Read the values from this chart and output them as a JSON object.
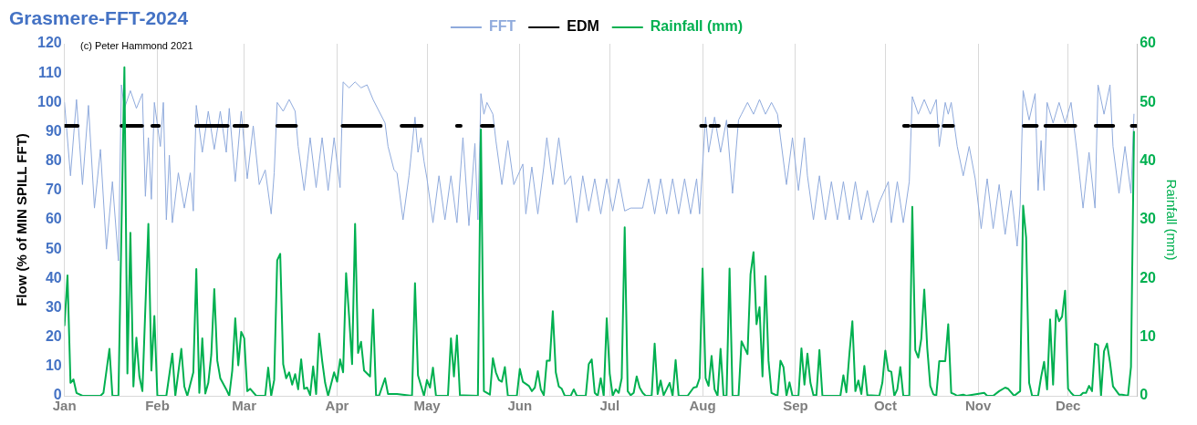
{
  "chart_data": {
    "type": "line",
    "title": "Grasmere-FFT-2024",
    "annotations": [
      "(c) Peter Hammond 2021"
    ],
    "ylabel": "Flow (% of MIN SPILL FFT)",
    "y2label": "Rainfall (mm)",
    "xlim": [
      "2024-01-01",
      "2024-12-24"
    ],
    "xticks": [
      {
        "value": "2024-01-01",
        "label": "Jan"
      },
      {
        "value": "2024-02-01",
        "label": "Feb"
      },
      {
        "value": "2024-03-01",
        "label": "Mar"
      },
      {
        "value": "2024-04-01",
        "label": "Apr"
      },
      {
        "value": "2024-05-01",
        "label": "May"
      },
      {
        "value": "2024-06-01",
        "label": "Jun"
      },
      {
        "value": "2024-07-01",
        "label": "Jul"
      },
      {
        "value": "2024-08-01",
        "label": "Aug"
      },
      {
        "value": "2024-09-01",
        "label": "Sep"
      },
      {
        "value": "2024-10-01",
        "label": "Oct"
      },
      {
        "value": "2024-11-01",
        "label": "Nov"
      },
      {
        "value": "2024-12-01",
        "label": "Dec"
      }
    ],
    "ylim": [
      0,
      120
    ],
    "yticks": [
      0,
      10,
      20,
      30,
      40,
      50,
      60,
      70,
      80,
      90,
      100,
      110,
      120
    ],
    "y2lim": [
      0,
      60
    ],
    "y2ticks": [
      0,
      10,
      20,
      30,
      40,
      50,
      60
    ],
    "grid": "x",
    "legend": "top",
    "marker": "none",
    "series": [
      {
        "name": "FFT",
        "color": "#8faadc",
        "x": [
          "2024-01-01",
          "2024-01-03",
          "2024-01-05",
          "2024-01-07",
          "2024-01-09",
          "2024-01-11",
          "2024-01-13",
          "2024-01-15",
          "2024-01-17",
          "2024-01-19",
          "2024-01-20",
          "2024-01-21",
          "2024-01-23",
          "2024-01-25",
          "2024-01-27",
          "2024-01-28",
          "2024-01-29",
          "2024-01-30",
          "2024-01-31",
          "2024-02-02",
          "2024-02-03",
          "2024-02-04",
          "2024-02-05",
          "2024-02-06",
          "2024-02-08",
          "2024-02-10",
          "2024-02-12",
          "2024-02-13",
          "2024-02-14",
          "2024-02-16",
          "2024-02-18",
          "2024-02-20",
          "2024-02-22",
          "2024-02-24",
          "2024-02-25",
          "2024-02-27",
          "2024-02-29",
          "2024-03-02",
          "2024-03-04",
          "2024-03-06",
          "2024-03-08",
          "2024-03-10",
          "2024-03-11",
          "2024-03-12",
          "2024-03-14",
          "2024-03-16",
          "2024-03-18",
          "2024-03-19",
          "2024-03-21",
          "2024-03-23",
          "2024-03-25",
          "2024-03-27",
          "2024-03-29",
          "2024-03-31",
          "2024-04-02",
          "2024-04-03",
          "2024-04-05",
          "2024-04-07",
          "2024-04-09",
          "2024-04-11",
          "2024-04-13",
          "2024-04-15",
          "2024-04-17",
          "2024-04-18",
          "2024-04-20",
          "2024-04-21",
          "2024-04-23",
          "2024-04-25",
          "2024-04-27",
          "2024-04-28",
          "2024-04-29",
          "2024-04-30",
          "2024-05-01",
          "2024-05-03",
          "2024-05-05",
          "2024-05-07",
          "2024-05-09",
          "2024-05-11",
          "2024-05-13",
          "2024-05-15",
          "2024-05-17",
          "2024-05-18",
          "2024-05-19",
          "2024-05-20",
          "2024-05-21",
          "2024-05-23",
          "2024-05-24",
          "2024-05-26",
          "2024-05-28",
          "2024-05-30",
          "2024-06-02",
          "2024-06-03",
          "2024-06-05",
          "2024-06-07",
          "2024-06-09",
          "2024-06-10",
          "2024-06-12",
          "2024-06-14",
          "2024-06-16",
          "2024-06-18",
          "2024-06-20",
          "2024-06-22",
          "2024-06-24",
          "2024-06-26",
          "2024-06-28",
          "2024-06-30",
          "2024-07-02",
          "2024-07-04",
          "2024-07-06",
          "2024-07-08",
          "2024-07-12",
          "2024-07-14",
          "2024-07-16",
          "2024-07-18",
          "2024-07-20",
          "2024-07-22",
          "2024-07-24",
          "2024-07-26",
          "2024-07-28",
          "2024-07-30",
          "2024-07-31",
          "2024-08-02",
          "2024-08-03",
          "2024-08-05",
          "2024-08-07",
          "2024-08-09",
          "2024-08-11",
          "2024-08-13",
          "2024-08-14",
          "2024-08-16",
          "2024-08-18",
          "2024-08-20",
          "2024-08-22",
          "2024-08-24",
          "2024-08-26",
          "2024-08-27",
          "2024-08-29",
          "2024-08-31",
          "2024-09-02",
          "2024-09-04",
          "2024-09-05",
          "2024-09-07",
          "2024-09-09",
          "2024-09-11",
          "2024-09-13",
          "2024-09-15",
          "2024-09-17",
          "2024-09-19",
          "2024-09-21",
          "2024-09-23",
          "2024-09-25",
          "2024-09-27",
          "2024-09-29",
          "2024-10-02",
          "2024-10-03",
          "2024-10-05",
          "2024-10-07",
          "2024-10-09",
          "2024-10-10",
          "2024-10-12",
          "2024-10-14",
          "2024-10-16",
          "2024-10-18",
          "2024-10-19",
          "2024-10-21",
          "2024-10-22",
          "2024-10-23",
          "2024-10-25",
          "2024-10-27",
          "2024-10-29",
          "2024-10-31",
          "2024-11-02",
          "2024-11-04",
          "2024-11-06",
          "2024-11-08",
          "2024-11-10",
          "2024-11-12",
          "2024-11-14",
          "2024-11-15",
          "2024-11-16",
          "2024-11-18",
          "2024-11-20",
          "2024-11-21",
          "2024-11-22",
          "2024-11-23",
          "2024-11-24",
          "2024-11-26",
          "2024-11-28",
          "2024-11-30",
          "2024-12-02",
          "2024-12-04",
          "2024-12-06",
          "2024-12-08",
          "2024-12-10",
          "2024-12-11",
          "2024-12-13",
          "2024-12-15",
          "2024-12-16",
          "2024-12-18",
          "2024-12-20",
          "2024-12-22",
          "2024-12-23"
        ],
        "values": [
          100,
          75,
          101,
          72,
          99,
          64,
          84,
          50,
          73,
          46,
          106,
          98,
          104,
          98,
          103,
          68,
          88,
          67,
          100,
          85,
          100,
          60,
          82,
          59,
          76,
          64,
          76,
          63,
          99,
          83,
          97,
          84,
          97,
          83,
          98,
          73,
          97,
          74,
          92,
          72,
          77,
          62,
          76,
          100,
          97,
          101,
          97,
          85,
          70,
          88,
          71,
          88,
          70,
          88,
          71,
          107,
          105,
          107,
          105,
          106,
          101,
          97,
          93,
          85,
          77,
          76,
          60,
          75,
          95,
          83,
          88,
          80,
          74,
          59,
          75,
          60,
          75,
          59,
          88,
          58,
          86,
          60,
          103,
          96,
          100,
          96,
          87,
          72,
          87,
          72,
          79,
          62,
          78,
          62,
          78,
          88,
          72,
          88,
          72,
          75,
          59,
          75,
          63,
          74,
          62,
          74,
          63,
          74,
          63,
          64,
          64,
          74,
          62,
          74,
          62,
          74,
          62,
          74,
          62,
          74,
          62,
          95,
          83,
          95,
          83,
          94,
          69,
          94,
          96,
          100,
          96,
          101,
          96,
          100,
          96,
          88,
          72,
          88,
          70,
          88,
          75,
          60,
          75,
          60,
          73,
          60,
          73,
          60,
          73,
          60,
          70,
          59,
          66,
          73,
          59,
          73,
          59,
          73,
          102,
          96,
          101,
          96,
          101,
          85,
          100,
          96,
          100,
          85,
          75,
          85,
          74,
          57,
          74,
          57,
          72,
          55,
          70,
          51,
          65,
          104,
          94,
          103,
          70,
          87,
          70,
          100,
          93,
          100,
          93,
          100,
          83,
          64,
          83,
          64,
          106,
          96,
          106,
          85,
          69,
          85,
          69,
          96
        ]
      },
      {
        "name": "EDM",
        "color": "#000000",
        "x": [
          "2024-01-01",
          "2024-01-05T10:00",
          "2024-01-06",
          "2024-01-20",
          "2024-01-26T22:00",
          "2024-01-28",
          "2024-01-30T07:00",
          "2024-02-01T12:00",
          "2024-02-07",
          "2024-02-13T22:00",
          "2024-02-24T12:00",
          "2024-02-25T12:00",
          "2024-02-26T17:00",
          "2024-03-02",
          "2024-03-06",
          "2024-03-12",
          "2024-03-18T07:00",
          "2024-03-25",
          "2024-04-02T19:00",
          "2024-04-15T14:00",
          "2024-04-19",
          "2024-04-22T12:00",
          "2024-04-29T07:00",
          "2024-05-05",
          "2024-05-11",
          "2024-05-12T06:00",
          "2024-05-15",
          "2024-05-19T07:00",
          "2024-05-23",
          "2024-06-28",
          "2024-07-31T12:00",
          "2024-08-02T00:00",
          "2024-08-02T12:00",
          "2024-08-03T14:00",
          "2024-08-06T10:00",
          "2024-08-07T12:00",
          "2024-08-09T19:00",
          "2024-08-26T22:00",
          "2024-09-16",
          "2024-10-07T06:00",
          "2024-10-08T18:00",
          "2024-10-09T06:00",
          "2024-10-09T22:00",
          "2024-10-18T14:00",
          "2024-10-19",
          "2024-10-20T12:00",
          "2024-10-23T14:00",
          "2024-11-04",
          "2024-11-16T05:00",
          "2024-11-20T14:00",
          "2024-11-21T12:00",
          "2024-11-23T10:00",
          "2024-12-03T10:00",
          "2024-12-07",
          "2024-12-10T05:00",
          "2024-12-16T02:00",
          "2024-12-20",
          "2024-12-22T06:00",
          "2024-12-23T18:00"
        ],
        "values": [
          92,
          92,
          null,
          92,
          92,
          null,
          92,
          92,
          null,
          92,
          92,
          null,
          92,
          92,
          null,
          92,
          92,
          null,
          92,
          92,
          null,
          92,
          92,
          null,
          92,
          92,
          null,
          92,
          92,
          null,
          92,
          92,
          null,
          92,
          92,
          null,
          92,
          92,
          null,
          92,
          92,
          null,
          92,
          92,
          null,
          92,
          92,
          null,
          92,
          92,
          null,
          92,
          92,
          null,
          92,
          92,
          null,
          92,
          92
        ]
      },
      {
        "name": "Rainfall (mm)",
        "color": "#00b050",
        "axis": "y2",
        "x": [
          "2024-01-01",
          "2024-01-02",
          "2024-01-03",
          "2024-01-04",
          "2024-01-05",
          "2024-01-07",
          "2024-01-13",
          "2024-01-14",
          "2024-01-16",
          "2024-01-17",
          "2024-01-19",
          "2024-01-21",
          "2024-01-22",
          "2024-01-23",
          "2024-01-24",
          "2024-01-25",
          "2024-01-26",
          "2024-01-27",
          "2024-01-29",
          "2024-01-30",
          "2024-01-31",
          "2024-02-01",
          "2024-02-04",
          "2024-02-06",
          "2024-02-07",
          "2024-02-09",
          "2024-02-10",
          "2024-02-11",
          "2024-02-13",
          "2024-02-14",
          "2024-02-15",
          "2024-02-16",
          "2024-02-17",
          "2024-02-18",
          "2024-02-19",
          "2024-02-20",
          "2024-02-21",
          "2024-02-22",
          "2024-02-24",
          "2024-02-25",
          "2024-02-26",
          "2024-02-27",
          "2024-02-28",
          "2024-02-29",
          "2024-03-01",
          "2024-03-02",
          "2024-03-03",
          "2024-03-05",
          "2024-03-08",
          "2024-03-09",
          "2024-03-10",
          "2024-03-11",
          "2024-03-12",
          "2024-03-13",
          "2024-03-14",
          "2024-03-15",
          "2024-03-16",
          "2024-03-17",
          "2024-03-18",
          "2024-03-19",
          "2024-03-20",
          "2024-03-21",
          "2024-03-22",
          "2024-03-23",
          "2024-03-24",
          "2024-03-25",
          "2024-03-26",
          "2024-03-27",
          "2024-03-28",
          "2024-03-29",
          "2024-03-31",
          "2024-04-01",
          "2024-04-02",
          "2024-04-03",
          "2024-04-04",
          "2024-04-05",
          "2024-04-06",
          "2024-04-07",
          "2024-04-08",
          "2024-04-09",
          "2024-04-10",
          "2024-04-12",
          "2024-04-13",
          "2024-04-14",
          "2024-04-15",
          "2024-04-17",
          "2024-04-18",
          "2024-04-21",
          "2024-04-26",
          "2024-04-27",
          "2024-04-28",
          "2024-04-30",
          "2024-05-01",
          "2024-05-02",
          "2024-05-03",
          "2024-05-04",
          "2024-05-08",
          "2024-05-09",
          "2024-05-10",
          "2024-05-11",
          "2024-05-12",
          "2024-05-18",
          "2024-05-19",
          "2024-05-20",
          "2024-05-22",
          "2024-05-23",
          "2024-05-24",
          "2024-05-25",
          "2024-05-26",
          "2024-05-27",
          "2024-05-28",
          "2024-05-31",
          "2024-06-01",
          "2024-06-02",
          "2024-06-04",
          "2024-06-05",
          "2024-06-06",
          "2024-06-07",
          "2024-06-08",
          "2024-06-09",
          "2024-06-10",
          "2024-06-11",
          "2024-06-12",
          "2024-06-13",
          "2024-06-14",
          "2024-06-15",
          "2024-06-16",
          "2024-06-18",
          "2024-06-19",
          "2024-06-20",
          "2024-06-23",
          "2024-06-24",
          "2024-06-25",
          "2024-06-26",
          "2024-06-27",
          "2024-06-28",
          "2024-06-29",
          "2024-06-30",
          "2024-07-01",
          "2024-07-02",
          "2024-07-03",
          "2024-07-04",
          "2024-07-05",
          "2024-07-06",
          "2024-07-07",
          "2024-07-08",
          "2024-07-09",
          "2024-07-10",
          "2024-07-11",
          "2024-07-12",
          "2024-07-13",
          "2024-07-15",
          "2024-07-16",
          "2024-07-17",
          "2024-07-18",
          "2024-07-19",
          "2024-07-21",
          "2024-07-22",
          "2024-07-23",
          "2024-07-24",
          "2024-07-27",
          "2024-07-29",
          "2024-07-30",
          "2024-07-31",
          "2024-08-01",
          "2024-08-02",
          "2024-08-03",
          "2024-08-04",
          "2024-08-05",
          "2024-08-06",
          "2024-08-07",
          "2024-08-08",
          "2024-08-09",
          "2024-08-10",
          "2024-08-11",
          "2024-08-13",
          "2024-08-14",
          "2024-08-16",
          "2024-08-17",
          "2024-08-18",
          "2024-08-19",
          "2024-08-20",
          "2024-08-21",
          "2024-08-22",
          "2024-08-23",
          "2024-08-24",
          "2024-08-26",
          "2024-08-27",
          "2024-08-28",
          "2024-08-29",
          "2024-08-30",
          "2024-08-31",
          "2024-09-02",
          "2024-09-03",
          "2024-09-04",
          "2024-09-05",
          "2024-09-06",
          "2024-09-07",
          "2024-09-08",
          "2024-09-09",
          "2024-09-10",
          "2024-09-16",
          "2024-09-17",
          "2024-09-18",
          "2024-09-19",
          "2024-09-20",
          "2024-09-21",
          "2024-09-22",
          "2024-09-23",
          "2024-09-24",
          "2024-09-25",
          "2024-09-29",
          "2024-09-30",
          "2024-10-01",
          "2024-10-02",
          "2024-10-03",
          "2024-10-04",
          "2024-10-05",
          "2024-10-06",
          "2024-10-07",
          "2024-10-09",
          "2024-10-10",
          "2024-10-11",
          "2024-10-12",
          "2024-10-13",
          "2024-10-14",
          "2024-10-15",
          "2024-10-16",
          "2024-10-17",
          "2024-10-18",
          "2024-10-19",
          "2024-10-21",
          "2024-10-22",
          "2024-10-23",
          "2024-10-24",
          "2024-10-25",
          "2024-10-27",
          "2024-10-28",
          "2024-11-03",
          "2024-11-04",
          "2024-11-06",
          "2024-11-08",
          "2024-11-10",
          "2024-11-11",
          "2024-11-13",
          "2024-11-15",
          "2024-11-16",
          "2024-11-17",
          "2024-11-18",
          "2024-11-19",
          "2024-11-21",
          "2024-11-22",
          "2024-11-23",
          "2024-11-24",
          "2024-11-25",
          "2024-11-26",
          "2024-11-27",
          "2024-11-28",
          "2024-11-29",
          "2024-11-30",
          "2024-12-01",
          "2024-12-02",
          "2024-12-03",
          "2024-12-05",
          "2024-12-06",
          "2024-12-07",
          "2024-12-08",
          "2024-12-09",
          "2024-12-10",
          "2024-12-11",
          "2024-12-12",
          "2024-12-13",
          "2024-12-14",
          "2024-12-15",
          "2024-12-16",
          "2024-12-18",
          "2024-12-19",
          "2024-12-21",
          "2024-12-22",
          "2024-12-23"
        ],
        "values": [
          12,
          20.5,
          2.2,
          2.8,
          0.5,
          0,
          0,
          0.5,
          8,
          0,
          0,
          56,
          3.8,
          27.8,
          1.6,
          9.9,
          3.3,
          0.8,
          29.3,
          4.3,
          13.6,
          0,
          0,
          7.2,
          0,
          8,
          1.6,
          0,
          4,
          21.6,
          0.5,
          9.8,
          0.4,
          2.2,
          7,
          18.2,
          6,
          3,
          1.1,
          0,
          4.3,
          13.2,
          5.2,
          10.9,
          9.8,
          0.8,
          1.2,
          0,
          0,
          4.8,
          0,
          2.7,
          23.1,
          24.2,
          5.4,
          3,
          4,
          1.9,
          3.7,
          1.1,
          6.2,
          1.2,
          1.4,
          0.1,
          5,
          0.3,
          10.6,
          6,
          2.2,
          0,
          4,
          2.4,
          6.2,
          4,
          20.9,
          13.6,
          5.4,
          29.3,
          7.3,
          9.2,
          4.3,
          3.3,
          14.7,
          0.1,
          0,
          3,
          0.3,
          0.3,
          0,
          19.2,
          3.5,
          0,
          2.7,
          1.4,
          4.8,
          0,
          0,
          9.8,
          3.3,
          10.3,
          0.1,
          0,
          45.4,
          0.8,
          0.2,
          6.4,
          4,
          2.7,
          2.4,
          4.9,
          0,
          0,
          4.6,
          2.4,
          1.7,
          0.8,
          1.4,
          4.2,
          1.1,
          0.1,
          6,
          6,
          14.4,
          4,
          1.6,
          1.2,
          0,
          0,
          1.1,
          0,
          0,
          5.4,
          6.2,
          0.5,
          0,
          3,
          0,
          13.2,
          3.8,
          0,
          1.1,
          0.5,
          3,
          28.7,
          0.8,
          0.1,
          0.5,
          3.3,
          1.4,
          0.5,
          0,
          0,
          8.9,
          0.3,
          2.6,
          0.1,
          2.2,
          0,
          6.1,
          0,
          0,
          1.4,
          1.5,
          3,
          21.7,
          3,
          1.7,
          6.8,
          1.1,
          0,
          8,
          0,
          0,
          21.7,
          0,
          0,
          9.3,
          7.1,
          20.7,
          24.5,
          12.2,
          15.1,
          3.3,
          20.4,
          6,
          0.5,
          0,
          6,
          4.9,
          0,
          2.3,
          0,
          0,
          8.1,
          1.9,
          7.2,
          2.2,
          0.1,
          0.1,
          7.8,
          0,
          0,
          3.5,
          0.6,
          7.1,
          12.7,
          0.8,
          2.6,
          0.3,
          5.1,
          0.1,
          0,
          2.2,
          7.7,
          4.3,
          4.1,
          0,
          1.1,
          4.9,
          0,
          0,
          32.2,
          7.8,
          6.5,
          9.7,
          18.1,
          8.1,
          1.7,
          0.3,
          0,
          5.9,
          5.9,
          12.2,
          0.5,
          0.3,
          0,
          0.2,
          0,
          0.5,
          0,
          0,
          0.8,
          1.4,
          1.2,
          0,
          0.8,
          32.4,
          27,
          2.2,
          0,
          0,
          3.2,
          5.8,
          1.1,
          13,
          1.9,
          14.6,
          12.7,
          13.5,
          17.9,
          1.2,
          0.5,
          0,
          0,
          0.5,
          0.5,
          1.7,
          0.8,
          8.9,
          8.6,
          0,
          7.6,
          8.9,
          5.7,
          1.6,
          0.2,
          0.2,
          0,
          4.9,
          45
        ]
      }
    ]
  }
}
